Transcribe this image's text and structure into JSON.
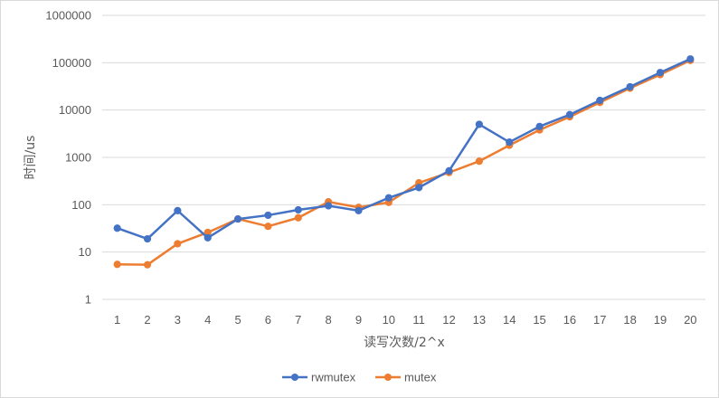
{
  "chart_data": {
    "type": "line",
    "title": "",
    "xlabel": "读写次数/2^x",
    "ylabel": "时间/us",
    "yscale": "log",
    "ylim": [
      1,
      1000000
    ],
    "grid": true,
    "legend_position": "bottom",
    "categories": [
      "1",
      "2",
      "3",
      "4",
      "5",
      "6",
      "7",
      "8",
      "9",
      "10",
      "11",
      "12",
      "13",
      "14",
      "15",
      "16",
      "17",
      "18",
      "19",
      "20"
    ],
    "y_ticks": [
      {
        "value": 1,
        "label": "1"
      },
      {
        "value": 10,
        "label": "10"
      },
      {
        "value": 100,
        "label": "100"
      },
      {
        "value": 1000,
        "label": "1000"
      },
      {
        "value": 10000,
        "label": "10000"
      },
      {
        "value": 100000,
        "label": "100000"
      },
      {
        "value": 1000000,
        "label": "1000000"
      }
    ],
    "series": [
      {
        "name": "rwmutex",
        "color": "#4472c4",
        "values": [
          32,
          19,
          75,
          20,
          50,
          60,
          78,
          95,
          75,
          140,
          230,
          520,
          5000,
          2100,
          4500,
          8000,
          16000,
          31000,
          62000,
          120000
        ]
      },
      {
        "name": "mutex",
        "color": "#ed7d31",
        "values": [
          5.5,
          5.4,
          15,
          26,
          50,
          35,
          53,
          115,
          88,
          112,
          290,
          480,
          830,
          1800,
          3800,
          7200,
          14500,
          29000,
          56000,
          112000
        ]
      }
    ]
  }
}
